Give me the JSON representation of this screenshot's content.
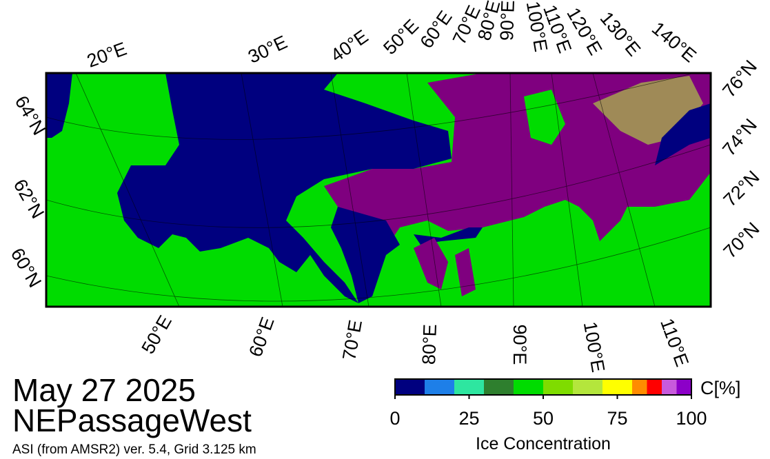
{
  "header": {
    "date": "May 27 2025",
    "region": "NEPassageWest",
    "source": "ASI (from AMSR2) ver. 5.4,  Grid 3.125 km"
  },
  "map": {
    "top_longitudes": [
      "20°E",
      "30°E",
      "40°E",
      "50°E",
      "60°E",
      "70°E",
      "80°E",
      "90°E",
      "100°E",
      "110°E",
      "120°E",
      "130°E",
      "140°E"
    ],
    "bottom_longitudes": [
      "50°E",
      "60°E",
      "70°E",
      "80°E",
      "90°E",
      "100°E",
      "110°E"
    ],
    "left_latitudes": [
      "64°N",
      "62°N",
      "60°N"
    ],
    "right_latitudes": [
      "76°N",
      "74°N",
      "72°N",
      "70°N"
    ]
  },
  "colorbar": {
    "unit": "C[%]",
    "label": "Ice Concentration",
    "bins": [
      0,
      10,
      20,
      30,
      40,
      50,
      60,
      70,
      80,
      85,
      90,
      95,
      100
    ],
    "colors": [
      "#00007f",
      "#1e7fe8",
      "#2ee6a0",
      "#2e7f2e",
      "#00dc00",
      "#7fdc00",
      "#b4e63c",
      "#ffff00",
      "#ff8c00",
      "#ff0000",
      "#c85adc",
      "#8c00c8"
    ],
    "ticks": [
      0,
      25,
      50,
      75,
      100
    ]
  }
}
